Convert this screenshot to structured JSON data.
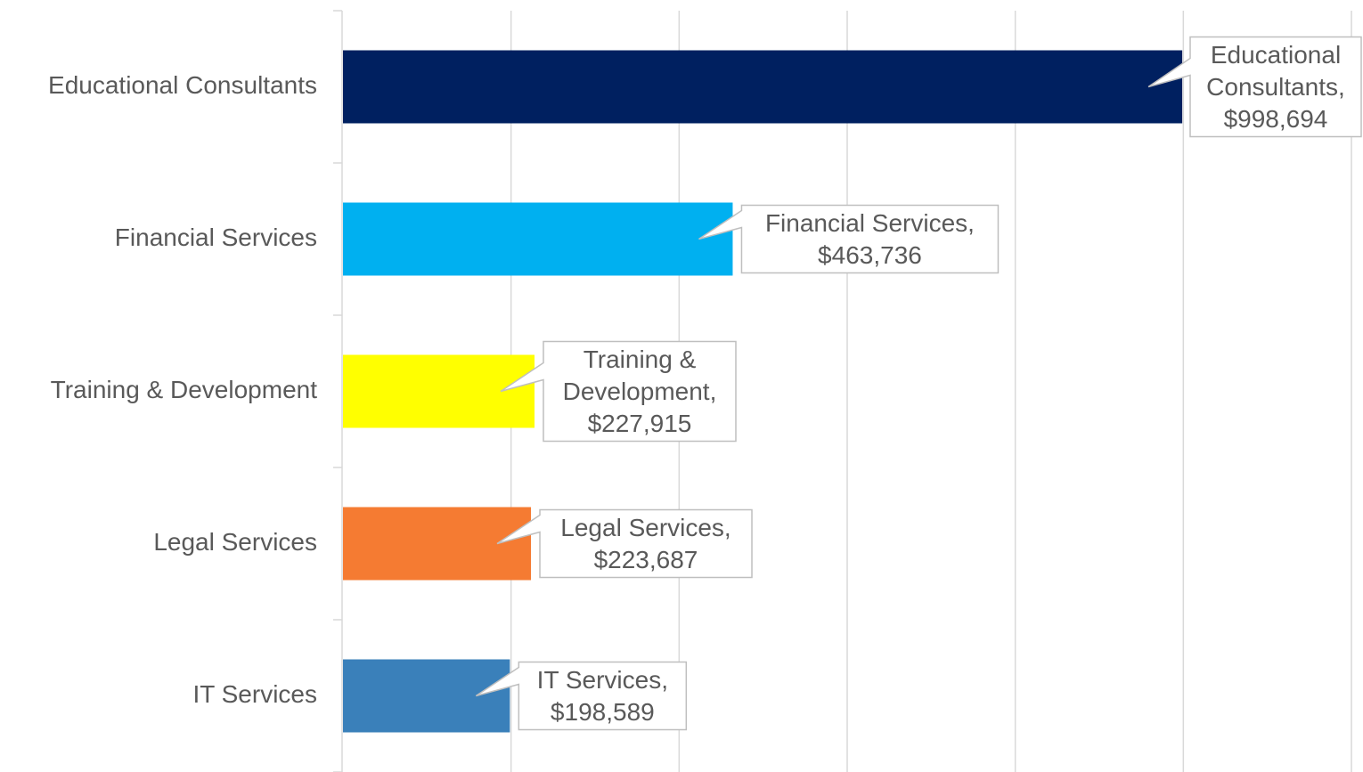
{
  "chart_data": {
    "type": "bar",
    "orientation": "horizontal",
    "categories": [
      "Educational Consultants",
      "Financial Services",
      "Training & Development",
      "Legal Services",
      "IT Services"
    ],
    "values": [
      998694,
      463736,
      227915,
      223687,
      198589
    ],
    "value_labels": [
      "Educational Consultants, $998,694",
      "Financial Services, $463,736",
      "Training & Development, $227,915",
      "Legal Services, $223,687",
      "IT Services, $198,589"
    ],
    "colors": [
      "#002060",
      "#00b0f0",
      "#ffff00",
      "#f57b32",
      "#3a80ba"
    ],
    "xlim": [
      0,
      1200000
    ],
    "xticks": [
      0,
      200000,
      400000,
      600000,
      800000,
      1000000,
      1200000
    ],
    "grid": true
  }
}
